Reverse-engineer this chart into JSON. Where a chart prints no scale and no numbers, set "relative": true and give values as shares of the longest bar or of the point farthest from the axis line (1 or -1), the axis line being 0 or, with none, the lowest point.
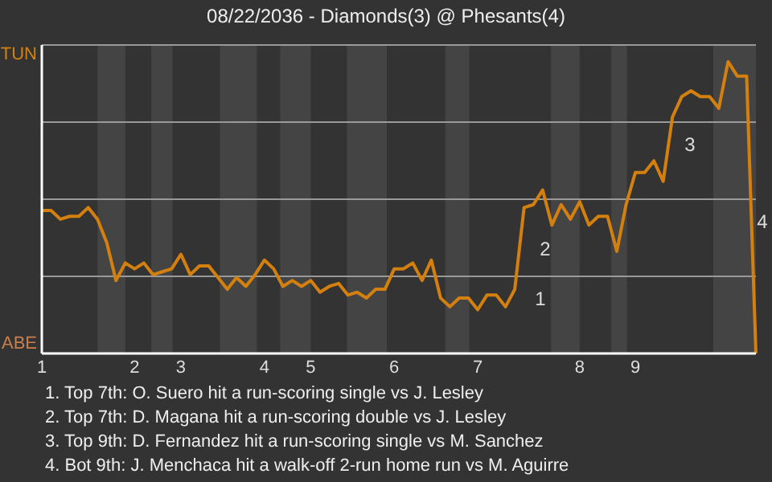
{
  "chart_data": {
    "type": "line",
    "title": "08/22/2036 - Diamonds(3) @ Phesants(4)",
    "relative": true,
    "categories": [
      "1",
      null,
      null,
      null,
      null,
      null,
      null,
      null,
      null,
      null,
      "2",
      null,
      null,
      null,
      null,
      "3",
      null,
      null,
      null,
      null,
      null,
      null,
      null,
      null,
      "4",
      null,
      null,
      null,
      null,
      "5",
      null,
      null,
      null,
      null,
      null,
      null,
      null,
      null,
      "6",
      null,
      null,
      null,
      null,
      null,
      null,
      null,
      null,
      "7",
      null,
      null,
      null,
      null,
      null,
      null,
      null,
      null,
      null,
      null,
      "8",
      null,
      null,
      null,
      null,
      null,
      "9",
      null,
      null,
      null,
      null,
      null,
      null,
      null,
      null,
      null,
      null,
      null,
      null,
      null
    ],
    "series": [
      {
        "color": "#d4800f",
        "values": [
          0.49,
          0.49,
          0.46,
          0.47,
          0.47,
          0.5,
          0.46,
          0.38,
          0.25,
          0.31,
          0.29,
          0.31,
          0.27,
          0.28,
          0.29,
          0.34,
          0.27,
          0.3,
          0.3,
          0.26,
          0.22,
          0.26,
          0.23,
          0.27,
          0.32,
          0.29,
          0.23,
          0.25,
          0.23,
          0.25,
          0.21,
          0.23,
          0.24,
          0.2,
          0.21,
          0.19,
          0.22,
          0.22,
          0.29,
          0.29,
          0.31,
          0.25,
          0.32,
          0.19,
          0.16,
          0.19,
          0.19,
          0.15,
          0.2,
          0.2,
          0.16,
          0.22,
          0.5,
          0.51,
          0.56,
          0.44,
          0.51,
          0.46,
          0.52,
          0.44,
          0.47,
          0.47,
          0.35,
          0.51,
          0.62,
          0.62,
          0.66,
          0.59,
          0.81,
          0.88,
          0.9,
          0.88,
          0.88,
          0.84,
          1,
          0.95,
          0.95,
          0
        ]
      }
    ],
    "grid": "y",
    "annotations": [
      "TUN",
      "ABE",
      "1",
      "2",
      "3",
      "4",
      "1. Top 7th: O. Suero hit a run-scoring single vs J. Lesley",
      "2. Top 7th: D. Magana hit a run-scoring double vs J. Lesley",
      "3. Top 9th: D. Fernandez hit a run-scoring single vs M. Sanchez",
      "4. Bot 9th: J. Menchaca hit a walk-off 2-run home run vs M. Aguirre"
    ]
  }
}
